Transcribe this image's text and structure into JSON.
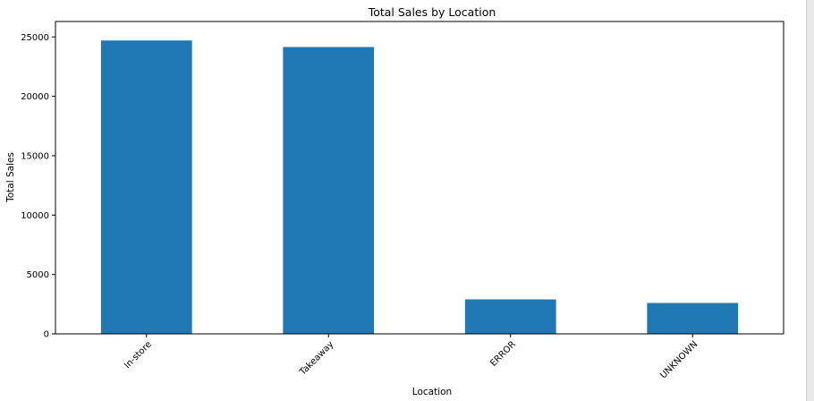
{
  "chart_data": {
    "type": "bar",
    "title": "Total Sales by Location",
    "xlabel": "Location",
    "ylabel": "Total Sales",
    "categories": [
      "In-store",
      "Takeaway",
      "ERROR",
      "UNKNOWN"
    ],
    "values": [
      24700,
      24150,
      2900,
      2600
    ],
    "ylim": [
      0,
      26300
    ],
    "yticks": [
      0,
      5000,
      10000,
      15000,
      20000,
      25000
    ],
    "ytick_labels": [
      "0",
      "5000",
      "10000",
      "15000",
      "20000",
      "25000"
    ],
    "bar_color": "#1f77b4",
    "grid": false,
    "legend": "none"
  }
}
